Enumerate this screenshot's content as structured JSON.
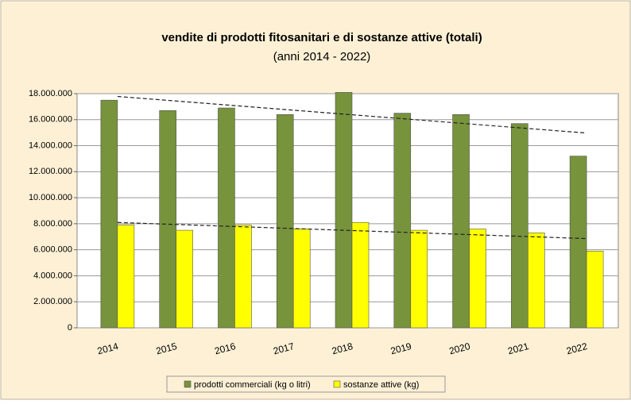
{
  "chart_data": {
    "type": "bar",
    "title": "vendite di prodotti fitosanitari e di sostanze attive (totali)",
    "subtitle": "(anni 2014 - 2022)",
    "categories": [
      "2014",
      "2015",
      "2016",
      "2017",
      "2018",
      "2019",
      "2020",
      "2021",
      "2022"
    ],
    "series": [
      {
        "name": "prodotti commerciali (kg o litri)",
        "color": "#77933c",
        "values": [
          17500000,
          16700000,
          16900000,
          16400000,
          18100000,
          16500000,
          16400000,
          15700000,
          13200000
        ]
      },
      {
        "name": "sostanze attive (kg)",
        "color": "#ffff00",
        "values": [
          7900000,
          7500000,
          7900000,
          7600000,
          8100000,
          7500000,
          7600000,
          7300000,
          5900000
        ]
      }
    ],
    "ylim": [
      0,
      18000000
    ],
    "yticks": [
      0,
      {
        "value": 2000000,
        "label": "2.000.000"
      },
      {
        "value": 4000000,
        "label": "4.000.000"
      },
      {
        "value": 6000000,
        "label": "6.000.000"
      },
      {
        "value": 8000000,
        "label": "8.000.000"
      },
      {
        "value": 10000000,
        "label": "10.000.000"
      },
      {
        "value": 12000000,
        "label": "12.000.000"
      },
      {
        "value": 14000000,
        "label": "14.000.000"
      },
      {
        "value": 16000000,
        "label": "16.000.000"
      },
      {
        "value": 18000000,
        "label": "18.000.000"
      }
    ],
    "grid": true,
    "trendline": true,
    "legend": "bottom"
  }
}
